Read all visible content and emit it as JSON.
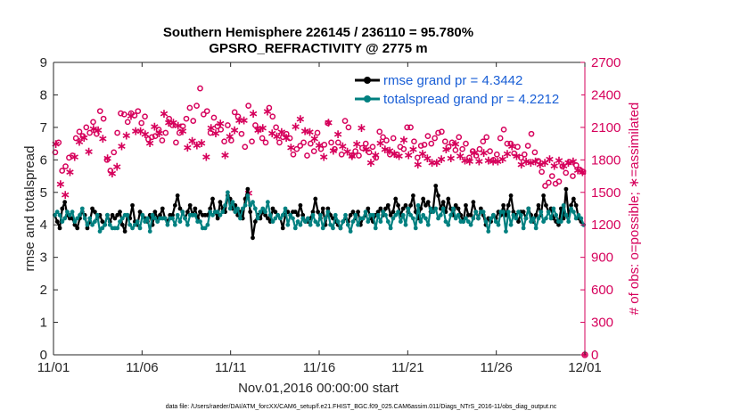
{
  "chart_data": {
    "type": "line",
    "title": "Southern Hemisphere 226145 / 236110 = 95.780%",
    "subtitle": "GPSRO_REFRACTIVITY @ 2775 m",
    "xlabel": "Nov.01,2016 00:00:00 start",
    "ylabel_left": "rmse and totalspread",
    "ylabel_right": "# of obs: o=possible; ∗=assimilated",
    "footnote": "data file: /Users/raeder/DAI/ATM_forcXX/CAM6_setup/f.e21.FHIST_BGC.f09_025.CAM6assim.011/Diags_NTrS_2016-11/obs_diag_output.nc",
    "x_ticks": [
      "11/01",
      "11/06",
      "11/11",
      "11/16",
      "11/21",
      "11/26",
      "12/01"
    ],
    "x_range_days": [
      0,
      30
    ],
    "ylim_left": [
      0,
      9
    ],
    "y_ticks_left": [
      "0",
      "1",
      "2",
      "3",
      "4",
      "5",
      "6",
      "7",
      "8",
      "9"
    ],
    "ylim_right": [
      0,
      2700
    ],
    "y_ticks_right": [
      "0",
      "300",
      "600",
      "900",
      "1200",
      "1500",
      "1800",
      "2100",
      "2400",
      "2700"
    ],
    "legend": {
      "position": "top-right",
      "rmse_label": "rmse grand pr = 4.3442",
      "spread_label": "totalspread grand pr = 4.2212"
    },
    "colors": {
      "rmse": "#000000",
      "spread": "#008080",
      "obs": "#d6005b",
      "legend_text": "#1a5fd6",
      "axis": "#262626"
    },
    "series": [
      {
        "name": "rmse",
        "values": [
          4.3,
          4.1,
          3.9,
          4.5,
          4.7,
          4.3,
          4.2,
          4.2,
          4.0,
          3.9,
          4.2,
          4.4,
          4.3,
          3.9,
          4.1,
          4.5,
          4.4,
          4.2,
          4.3,
          4.1,
          4.0,
          4.3,
          4.1,
          4.3,
          4.2,
          4.3,
          4.4,
          4.0,
          3.8,
          4.3,
          4.2,
          4.6,
          4.1,
          4.0,
          4.4,
          4.3,
          4.2,
          4.1,
          4.3,
          4.0,
          4.4,
          4.2,
          4.3,
          4.5,
          4.2,
          4.1,
          4.3,
          4.3,
          4.6,
          4.9,
          4.5,
          4.4,
          4.2,
          4.4,
          4.6,
          4.3,
          4.5,
          4.2,
          4.4,
          4.3,
          4.3,
          4.3,
          4.5,
          4.8,
          4.4,
          4.2,
          4.7,
          4.5,
          4.4,
          4.9,
          4.8,
          4.5,
          4.6,
          4.3,
          4.4,
          4.2,
          4.8,
          5.1,
          4.4,
          3.6,
          4.1,
          4.3,
          4.2,
          4.4,
          4.3,
          4.2,
          4.1,
          4.5,
          4.4,
          4.3,
          4.2,
          3.9,
          4.3,
          4.4,
          4.3,
          4.4,
          4.4,
          4.3,
          4.6,
          4.3,
          4.1,
          4.1,
          4.2,
          4.4,
          4.8,
          4.4,
          4.2,
          4.5,
          4.0,
          4.5,
          4.3,
          4.2,
          4.1,
          4.0,
          3.9,
          4.1,
          4.2,
          4.1,
          4.3,
          4.4,
          4.2,
          4.4,
          4.0,
          4.2,
          4.3,
          4.5,
          4.2,
          4.1,
          4.3,
          4.4,
          4.5,
          4.3,
          4.5,
          4.6,
          4.3,
          4.4,
          4.8,
          4.6,
          4.3,
          4.5,
          4.6,
          4.4,
          4.6,
          4.9,
          4.4,
          4.2,
          4.5,
          4.8,
          4.6,
          4.7,
          4.4,
          4.5,
          5.2,
          4.9,
          4.5,
          4.7,
          4.4,
          4.8,
          4.5,
          4.3,
          4.6,
          4.5,
          4.3,
          4.1,
          4.6,
          4.3,
          4.3,
          4.7,
          4.4,
          4.2,
          4.5,
          4.3,
          4.0,
          4.2,
          4.1,
          4.3,
          4.2,
          4.4,
          4.3,
          4.6,
          4.3,
          4.6,
          4.9,
          4.4,
          4.3,
          4.1,
          4.4,
          4.4,
          4.2,
          4.5,
          4.3,
          4.1,
          4.3,
          4.6,
          4.3,
          4.9,
          4.6,
          4.4,
          4.5,
          4.2,
          4.1,
          4.0,
          4.5,
          4.2,
          5.1,
          4.3,
          4.6,
          4.8,
          4.6,
          4.2,
          4.1,
          4.0
        ]
      },
      {
        "name": "totalspread",
        "values": [
          4.3,
          4.4,
          4.3,
          4.1,
          4.2,
          4.4,
          4.3,
          4.4,
          4.1,
          4.2,
          4.3,
          4.5,
          4.2,
          4.0,
          4.2,
          4.0,
          4.1,
          4.3,
          3.8,
          3.9,
          4.0,
          4.3,
          4.0,
          3.9,
          3.9,
          3.9,
          4.1,
          4.2,
          4.3,
          4.3,
          4.0,
          3.9,
          4.0,
          4.1,
          3.9,
          4.3,
          4.1,
          4.2,
          3.8,
          4.3,
          4.2,
          4.1,
          4.2,
          4.2,
          4.2,
          4.0,
          4.2,
          4.2,
          4.0,
          4.3,
          4.1,
          4.4,
          4.2,
          4.0,
          4.3,
          4.3,
          4.3,
          4.1,
          4.1,
          3.9,
          3.9,
          4.0,
          4.4,
          4.3,
          4.4,
          4.4,
          4.3,
          4.4,
          4.6,
          5.0,
          4.5,
          4.7,
          4.4,
          4.5,
          4.2,
          4.5,
          4.6,
          4.9,
          4.6,
          4.7,
          4.5,
          4.2,
          4.4,
          4.5,
          4.4,
          4.7,
          4.3,
          4.1,
          4.2,
          4.3,
          4.2,
          4.3,
          4.5,
          4.0,
          4.3,
          4.2,
          3.9,
          4.1,
          4.0,
          4.2,
          4.1,
          4.2,
          4.0,
          4.3,
          4.1,
          4.0,
          4.3,
          3.9,
          4.2,
          4.4,
          4.0,
          3.9,
          4.3,
          4.1,
          3.9,
          4.1,
          4.3,
          4.0,
          3.8,
          4.1,
          4.3,
          4.0,
          4.2,
          4.2,
          4.4,
          4.1,
          4.3,
          4.3,
          3.9,
          4.3,
          4.1,
          4.4,
          4.3,
          4.1,
          3.9,
          4.2,
          4.3,
          4.4,
          4.1,
          4.3,
          4.0,
          4.5,
          4.3,
          4.2,
          3.9,
          4.6,
          4.1,
          4.3,
          4.2,
          4.0,
          4.5,
          4.4,
          4.5,
          4.2,
          4.3,
          4.5,
          4.1,
          4.0,
          4.3,
          4.5,
          4.2,
          4.3,
          4.1,
          4.1,
          4.2,
          4.1,
          4.0,
          4.2,
          4.4,
          4.2,
          4.4,
          4.4,
          4.1,
          3.8,
          4.2,
          4.3,
          4.1,
          4.0,
          4.4,
          4.4,
          3.8,
          4.4,
          4.0,
          4.3,
          4.2,
          4.4,
          4.3,
          3.9,
          4.2,
          4.5,
          4.1,
          4.2,
          3.9,
          4.2,
          4.4,
          4.1,
          4.2,
          4.4,
          4.2,
          4.5,
          4.3,
          4.1,
          4.1,
          4.6,
          4.3,
          4.1,
          4.5,
          4.4,
          4.2,
          4.3,
          4.2,
          4.0
        ]
      },
      {
        "name": "obs_possible",
        "values": [
          1870,
          1960,
          1700,
          1740,
          1820,
          1840,
          2000,
          2060,
          2020,
          2100,
          2050,
          2150,
          2040,
          2250,
          2180,
          1800,
          1700,
          1870,
          2050,
          2230,
          2220,
          2150,
          2230,
          2210,
          2250,
          2140,
          2200,
          1990,
          2010,
          2020,
          2080,
          1980,
          2050,
          2180,
          2120,
          1960,
          2050,
          2110,
          2180,
          2280,
          2160,
          2300,
          2460,
          2220,
          2250,
          2050,
          2190,
          2110,
          2080,
          1970,
          2120,
          1980,
          2240,
          2200,
          2040,
          1920,
          2300,
          1970,
          2120,
          2080,
          2000,
          1960,
          2280,
          2200,
          2100,
          1960,
          2010,
          2040,
          2000,
          1850,
          1900,
          1930,
          1960,
          1840,
          1950,
          1880,
          2050,
          1900,
          1940,
          2140,
          1960,
          1900,
          1960,
          1850,
          2160,
          2100,
          1840,
          1880,
          1840,
          1910,
          1950,
          1870,
          1920,
          1820,
          2060,
          2010,
          1980,
          1850,
          2000,
          1850,
          1920,
          1900,
          2100,
          2100,
          1970,
          1820,
          1930,
          1940,
          2020,
          1950,
          2000,
          2050,
          2060,
          1970,
          1920,
          1960,
          1890,
          2010,
          1900,
          1950,
          1820,
          1880,
          1840,
          1900,
          1970,
          2010,
          1880,
          1800,
          1850,
          2000,
          2080,
          1950,
          1950,
          1860,
          1920,
          1820,
          1850,
          1930,
          2040,
          1870,
          1790,
          1690,
          1560,
          1590,
          1650,
          1580,
          1600,
          1740,
          1680,
          1780,
          1650,
          1750,
          1710,
          1690
        ]
      },
      {
        "name": "obs_assimilated",
        "values": [
          1950,
          1580,
          1480,
          1690,
          1830,
          1970,
          2010,
          1880,
          2090,
          2080,
          2000,
          1820,
          1680,
          1740,
          1930,
          2030,
          2210,
          2070,
          2070,
          2040,
          1960,
          2110,
          2050,
          2230,
          2150,
          2150,
          2120,
          2070,
          1920,
          1980,
          1940,
          1960,
          1830,
          2100,
          2050,
          2140,
          1850,
          2020,
          2080,
          2170,
          2170,
          1500,
          2230,
          2080,
          2100,
          2250,
          2050,
          2020,
          2060,
          2010,
          1920,
          2110,
          2180,
          2070,
          2060,
          2000,
          1940,
          1830,
          2150,
          1890,
          2040,
          1930,
          1880,
          1840,
          1950,
          2100,
          1900,
          1780,
          1850,
          1960,
          1900,
          1890,
          1860,
          1840,
          1990,
          1850,
          1900,
          1760,
          1860,
          1820,
          1780,
          1780,
          1810,
          1900,
          1820,
          1950,
          1840,
          1800,
          1790,
          1870,
          1790,
          1870,
          1800,
          1790,
          1790,
          1810,
          1860,
          1930,
          1840,
          1760,
          1790,
          1780,
          1790,
          1760,
          1780,
          1810,
          1750,
          1800,
          1750,
          1780,
          1790,
          1710,
          1690
        ]
      }
    ]
  }
}
